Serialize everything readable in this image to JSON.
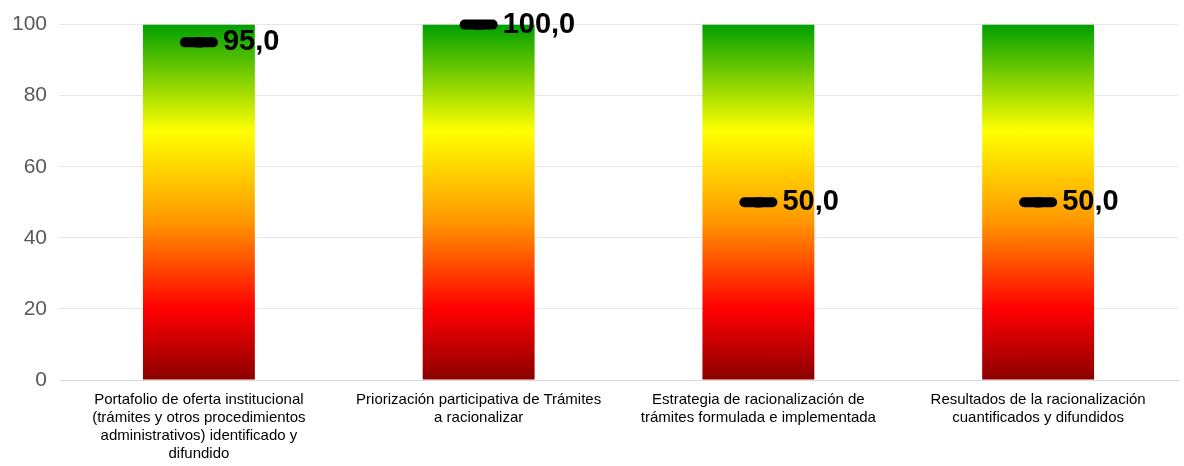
{
  "chart_data": {
    "type": "bar",
    "categories": [
      "Portafolio de oferta institucional (trámites y otros procedimientos administrativos) identificado y difundido",
      "Priorización participativa de Trámites a racionalizar",
      "Estrategia de racionalización de trámites formulada e implementada",
      "Resultados de la racionalización cuantificados y difundidos"
    ],
    "series": [
      {
        "color": "#ffff00",
        "values": [
          100,
          100,
          100,
          100
        ]
      },
      {
        "type": "scatter",
        "color": "#000000",
        "x": [
          "Portafolio de oferta institucional (trámites y otros procedimientos administrativos) identificado y difundido",
          "Priorización participativa de Trámites a racionalizar",
          "Estrategia de racionalización de trámites formulada e implementada",
          "Resultados de la racionalización cuantificados y difundidos"
        ],
        "values": [
          95,
          100,
          50,
          50
        ],
        "value_labels": [
          "95,0",
          "100,0",
          "50,0",
          "50,0"
        ]
      }
    ],
    "ylim": [
      0,
      100
    ],
    "yticks": [
      0,
      20,
      40,
      60,
      80,
      100
    ],
    "grid": "y",
    "legend": false
  }
}
